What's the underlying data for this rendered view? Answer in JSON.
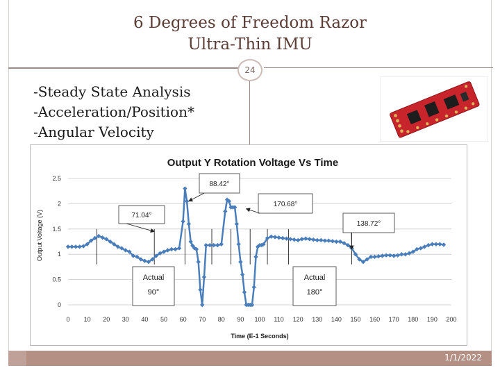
{
  "slide": {
    "title_line1": "6 Degrees of Freedom Razor",
    "title_line2": "Ultra-Thin IMU",
    "page_number": "24",
    "bullets": [
      "-Steady State Analysis",
      "-Acceleration/Position*",
      "-Angular Velocity"
    ],
    "date": "1/1/2022"
  },
  "colors": {
    "title": "#5b3d36",
    "series": "#4a7ebb",
    "footer": "#b38f84"
  },
  "photo": {
    "icon": "sensor-board-icon"
  },
  "chart_data": {
    "type": "line",
    "title": "Output Y Rotation Voltage Vs Time",
    "xlabel": "Time (E-1 Seconds)",
    "ylabel": "Output Voltage (V)",
    "xlim": [
      0,
      200
    ],
    "ylim": [
      0,
      2.5
    ],
    "xticks": [
      0,
      10,
      20,
      30,
      40,
      50,
      60,
      70,
      80,
      90,
      100,
      110,
      120,
      130,
      140,
      150,
      160,
      170,
      180,
      190,
      200
    ],
    "yticks": [
      0,
      0.5,
      1,
      1.5,
      2,
      2.5
    ],
    "grid": "horizontal",
    "series": [
      {
        "name": "Output Y Rotation Voltage",
        "x": [
          0,
          2,
          4,
          6,
          8,
          10,
          12,
          14,
          16,
          18,
          20,
          22,
          24,
          26,
          28,
          30,
          32,
          34,
          36,
          38,
          40,
          42,
          44,
          46,
          48,
          50,
          52,
          54,
          56,
          58,
          60,
          61,
          62,
          63,
          64,
          65,
          66,
          67,
          68,
          69,
          70,
          71,
          72,
          74,
          76,
          78,
          80,
          82,
          83,
          84,
          85,
          86,
          87,
          88,
          89,
          90,
          91,
          92,
          93,
          94,
          95,
          96,
          97,
          98,
          99,
          100,
          101,
          102,
          104,
          106,
          108,
          110,
          112,
          114,
          116,
          118,
          120,
          122,
          124,
          126,
          128,
          130,
          132,
          134,
          136,
          138,
          140,
          142,
          144,
          146,
          148,
          150,
          152,
          154,
          156,
          158,
          160,
          162,
          164,
          166,
          168,
          170,
          172,
          174,
          176,
          178,
          180,
          182,
          184,
          186,
          188,
          190,
          192,
          194,
          196
        ],
        "y": [
          1.15,
          1.15,
          1.15,
          1.15,
          1.16,
          1.2,
          1.27,
          1.32,
          1.36,
          1.33,
          1.3,
          1.25,
          1.2,
          1.15,
          1.12,
          1.08,
          1.05,
          0.97,
          0.95,
          0.9,
          0.87,
          0.85,
          0.9,
          0.97,
          1.02,
          1.05,
          1.08,
          1.1,
          1.1,
          1.12,
          1.65,
          2.3,
          2.05,
          1.6,
          1.25,
          1.17,
          1.12,
          1.1,
          0.85,
          0.3,
          0.0,
          0.55,
          1.18,
          1.18,
          1.18,
          1.18,
          1.2,
          1.85,
          2.08,
          2.05,
          1.93,
          1.93,
          1.93,
          1.6,
          1.2,
          0.85,
          0.6,
          0.25,
          0.0,
          0.0,
          0.0,
          0.0,
          0.35,
          0.95,
          1.15,
          1.18,
          1.18,
          1.2,
          1.32,
          1.35,
          1.34,
          1.33,
          1.32,
          1.31,
          1.3,
          1.29,
          1.28,
          1.3,
          1.31,
          1.3,
          1.29,
          1.28,
          1.28,
          1.27,
          1.27,
          1.26,
          1.25,
          1.25,
          1.22,
          1.18,
          1.12,
          1.0,
          0.9,
          0.85,
          0.9,
          0.95,
          0.95,
          0.96,
          0.97,
          0.98,
          0.98,
          0.97,
          0.98,
          1.0,
          1.0,
          1.02,
          1.05,
          1.1,
          1.12,
          1.15,
          1.18,
          1.2,
          1.2,
          1.2,
          1.19
        ]
      }
    ],
    "markers_x": [
      15,
      45,
      61,
      75,
      85,
      95,
      104,
      115,
      148
    ],
    "annotations": [
      {
        "text": "88.42°",
        "target_x": 63,
        "target_y": 2.05
      },
      {
        "text": "71.04°",
        "target_x": 45,
        "target_y": 1.45
      },
      {
        "text": "170.68°",
        "target_x": 93,
        "target_y": 1.9
      },
      {
        "text": "138.72°",
        "target_x": 148,
        "target_y": 1.1
      }
    ],
    "text_boxes": [
      {
        "line1": "Actual",
        "line2": "90°"
      },
      {
        "line1": "Actual",
        "line2": "180°"
      }
    ]
  }
}
